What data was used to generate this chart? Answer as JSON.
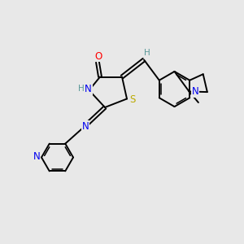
{
  "background_color": "#e8e8e8",
  "atom_colors": {
    "O": "#ff0000",
    "N": "#0000ee",
    "S": "#bbaa00",
    "H_teal": "#5a9898",
    "C": "#000000"
  },
  "figsize": [
    3.0,
    3.0
  ],
  "dpi": 100
}
